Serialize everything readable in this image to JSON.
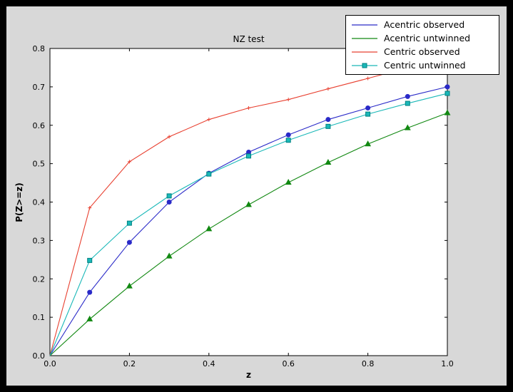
{
  "window": {
    "frame_color": "#000000",
    "figure_background": "#d8d8d8",
    "axes_background": "#ffffff"
  },
  "chart_data": {
    "type": "line",
    "title": "NZ test",
    "xlabel": "z",
    "ylabel": "P(Z>=z)",
    "xlim": [
      0.0,
      1.0
    ],
    "ylim": [
      0.0,
      0.8
    ],
    "grid": false,
    "legend_position": "upper right",
    "xticks": [
      0.0,
      0.2,
      0.4,
      0.6,
      0.8,
      1.0
    ],
    "xtick_labels": [
      "0.0",
      "0.2",
      "0.4",
      "0.6",
      "0.8",
      "1.0"
    ],
    "yticks": [
      0.0,
      0.1,
      0.2,
      0.3,
      0.4,
      0.5,
      0.6,
      0.7,
      0.8
    ],
    "ytick_labels": [
      "0.0",
      "0.1",
      "0.2",
      "0.3",
      "0.4",
      "0.5",
      "0.6",
      "0.7",
      "0.8"
    ],
    "x": [
      0.0,
      0.1,
      0.2,
      0.3,
      0.4,
      0.5,
      0.6,
      0.7,
      0.8,
      0.9,
      1.0
    ],
    "series": [
      {
        "id": "acentric-observed",
        "name": "Acentric observed",
        "color": "#2a2ac8",
        "marker": "circle",
        "marker_edge": "#2a2ac8",
        "legend_marker": false,
        "values": [
          0.0,
          0.165,
          0.295,
          0.4,
          0.475,
          0.53,
          0.575,
          0.615,
          0.645,
          0.675,
          0.7
        ]
      },
      {
        "id": "acentric-untwinned",
        "name": "Acentric untwinned",
        "color": "#118811",
        "marker": "triangle",
        "marker_edge": "#118811",
        "legend_marker": false,
        "values": [
          0.0,
          0.095,
          0.181,
          0.259,
          0.33,
          0.393,
          0.451,
          0.503,
          0.551,
          0.593,
          0.632
        ]
      },
      {
        "id": "centric-observed",
        "name": "Centric observed",
        "color": "#e84030",
        "marker": "plus",
        "marker_edge": "#e84030",
        "legend_marker": false,
        "values": [
          0.0,
          0.385,
          0.505,
          0.57,
          0.615,
          0.645,
          0.667,
          0.695,
          0.722,
          0.75,
          0.775
        ]
      },
      {
        "id": "centric-untwinned",
        "name": "Centric untwinned",
        "color": "#1ab8b8",
        "marker": "square",
        "marker_edge": "#008080",
        "legend_marker": true,
        "values": [
          0.0,
          0.248,
          0.345,
          0.416,
          0.473,
          0.52,
          0.561,
          0.597,
          0.629,
          0.657,
          0.683
        ]
      }
    ]
  }
}
